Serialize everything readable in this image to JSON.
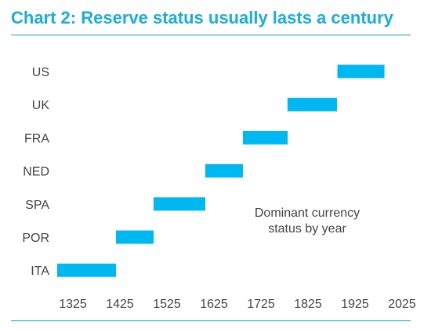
{
  "chart_data": {
    "type": "bar",
    "orientation": "horizontal-range",
    "title": "Chart 2: Reserve status usually lasts a century",
    "annotation": [
      "Dominant currency",
      "status by year"
    ],
    "categories": [
      "US",
      "UK",
      "FRA",
      "NED",
      "SPA",
      "POR",
      "ITA"
    ],
    "series": [
      {
        "ranges": [
          [
            1921,
            2021
          ],
          [
            1815,
            1920
          ],
          [
            1720,
            1815
          ],
          [
            1640,
            1720
          ],
          [
            1530,
            1640
          ],
          [
            1450,
            1530
          ],
          [
            1325,
            1450
          ]
        ]
      }
    ],
    "x_ticks": [
      1325,
      1425,
      1525,
      1625,
      1725,
      1825,
      1925,
      2025
    ],
    "xlim": [
      1300,
      2050
    ],
    "grid": false,
    "colors": {
      "bar": "#00b8f1",
      "title": "#1aaed9",
      "rule": "#1aaed9",
      "text": "#444444"
    }
  }
}
